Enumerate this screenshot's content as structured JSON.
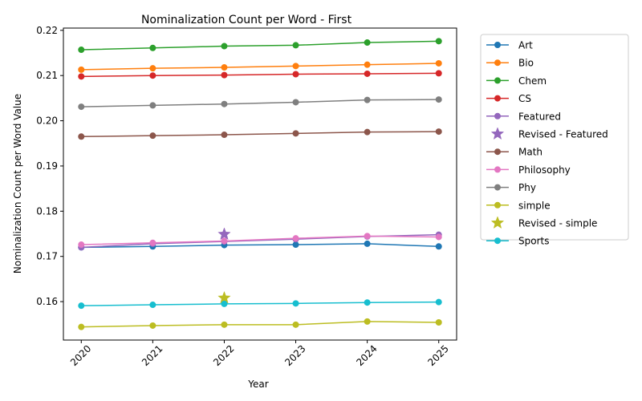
{
  "chart_data": {
    "type": "line",
    "title": "Nominalization Count per Word - First",
    "xlabel": "Year",
    "ylabel": "Nominalization Count per Word Value",
    "x": [
      2020,
      2021,
      2022,
      2023,
      2024,
      2025
    ],
    "ylim": [
      0.1515,
      0.2205
    ],
    "yticks": [
      0.16,
      0.17,
      0.18,
      0.19,
      0.2,
      0.21,
      0.22
    ],
    "ytick_labels": [
      "0.16",
      "0.17",
      "0.18",
      "0.19",
      "0.20",
      "0.21",
      "0.22"
    ],
    "grid": false,
    "legend_position": "outside-right",
    "series": [
      {
        "name": "Art",
        "color": "#1f77b4",
        "values": [
          0.172,
          0.1722,
          0.1725,
          0.1726,
          0.1728,
          0.1722
        ]
      },
      {
        "name": "Bio",
        "color": "#ff7f0e",
        "values": [
          0.2113,
          0.2116,
          0.2118,
          0.2121,
          0.2124,
          0.2127
        ]
      },
      {
        "name": "Chem",
        "color": "#2ca02c",
        "values": [
          0.2157,
          0.2161,
          0.2165,
          0.2167,
          0.2173,
          0.2176
        ]
      },
      {
        "name": "CS",
        "color": "#d62728",
        "values": [
          0.2098,
          0.21,
          0.2101,
          0.2103,
          0.2104,
          0.2105
        ]
      },
      {
        "name": "Featured",
        "color": "#9467bd",
        "values": [
          0.172,
          0.1728,
          0.1733,
          0.1738,
          0.1744,
          0.1748
        ]
      },
      {
        "name": "Revised - Featured",
        "color": "#9467bd",
        "marker": "star",
        "x": [
          2022
        ],
        "values": [
          0.1749
        ]
      },
      {
        "name": "Math",
        "color": "#8c564b",
        "values": [
          0.1965,
          0.1967,
          0.1969,
          0.1972,
          0.1975,
          0.1976
        ]
      },
      {
        "name": "Philosophy",
        "color": "#e377c2",
        "values": [
          0.1726,
          0.173,
          0.1734,
          0.174,
          0.1745,
          0.1743
        ]
      },
      {
        "name": "Phy",
        "color": "#7f7f7f",
        "values": [
          0.2031,
          0.2034,
          0.2037,
          0.2041,
          0.2046,
          0.2047
        ]
      },
      {
        "name": "simple",
        "color": "#bcbd22",
        "values": [
          0.1544,
          0.1547,
          0.1549,
          0.1549,
          0.1556,
          0.1554
        ]
      },
      {
        "name": "Revised - simple",
        "color": "#bcbd22",
        "marker": "star",
        "x": [
          2022
        ],
        "values": [
          0.1608
        ]
      },
      {
        "name": "Sports",
        "color": "#17becf",
        "values": [
          0.1591,
          0.1593,
          0.1595,
          0.1596,
          0.1598,
          0.1599
        ]
      }
    ]
  }
}
